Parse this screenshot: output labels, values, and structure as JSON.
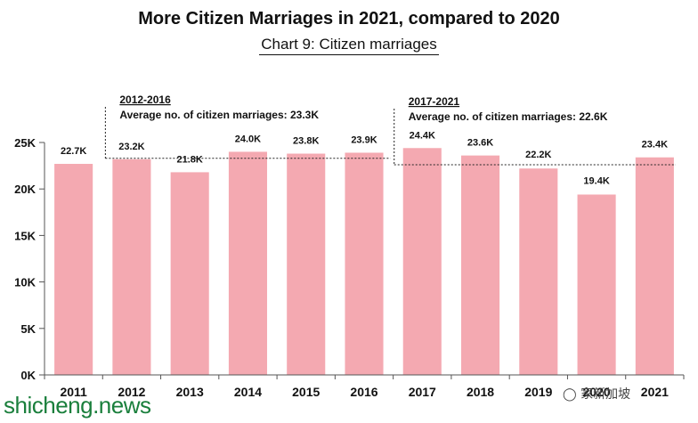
{
  "title": "More Citizen Marriages in 2021, compared to 2020",
  "subtitle": "Chart 9: Citizen marriages",
  "watermark": "shicheng.news",
  "wechat_mark": "家新加坡",
  "colors": {
    "bar": "#f4a9b1",
    "axis": "#555555",
    "text": "#111111"
  },
  "chart_data": {
    "type": "bar",
    "categories": [
      "2011",
      "2012",
      "2013",
      "2014",
      "2015",
      "2016",
      "2017",
      "2018",
      "2019",
      "2020",
      "2021"
    ],
    "values": [
      22.7,
      23.2,
      21.8,
      24.0,
      23.8,
      23.9,
      24.4,
      23.6,
      22.2,
      19.4,
      23.4
    ],
    "value_labels": [
      "22.7K",
      "23.2K",
      "21.8K",
      "24.0K",
      "23.8K",
      "23.9K",
      "24.4K",
      "23.6K",
      "22.2K",
      "19.4K",
      "23.4K"
    ],
    "yticks": [
      0,
      5,
      10,
      15,
      20,
      25
    ],
    "ytick_labels": [
      "0K",
      "5K",
      "10K",
      "15K",
      "20K",
      "25K"
    ],
    "ylim": [
      0,
      25
    ],
    "annotations": [
      {
        "period": "2012-2016",
        "text": "Average no. of citizen marriages: 23.3K",
        "value": 23.3,
        "from": "2012",
        "to": "2016"
      },
      {
        "period": "2017-2021",
        "text": "Average no. of citizen marriages: 22.6K",
        "value": 22.6,
        "from": "2017",
        "to": "2021"
      }
    ]
  }
}
